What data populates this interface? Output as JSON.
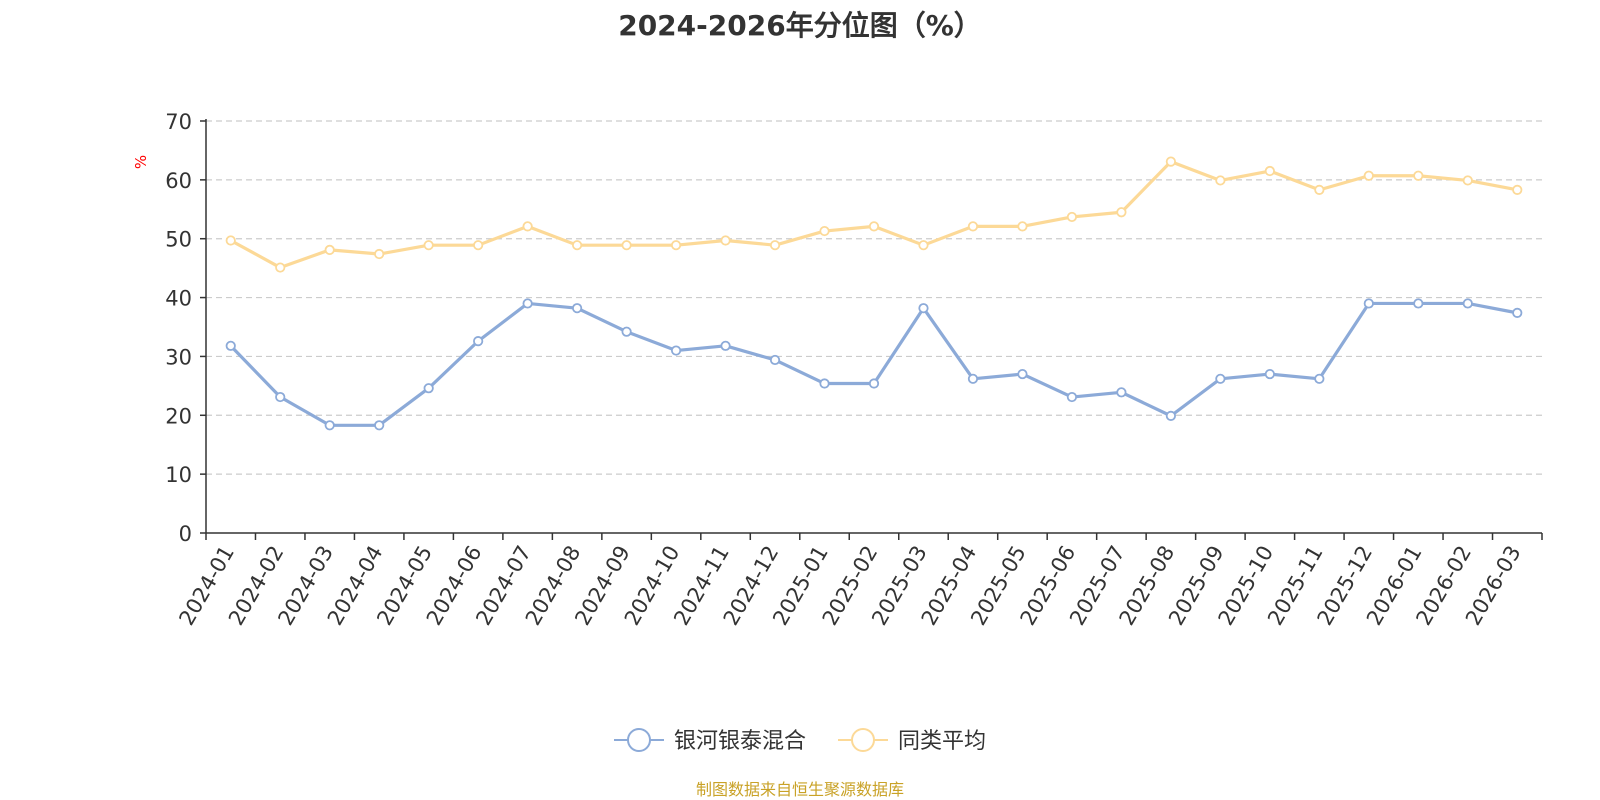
{
  "chart_data": {
    "type": "line",
    "title": "2024-2026年分位图（%）",
    "ylabel": "%",
    "xlabel": "",
    "ylim": [
      0,
      70
    ],
    "yticks": [
      0,
      10,
      20,
      30,
      40,
      50,
      60,
      70
    ],
    "grid": "horizontal-dashed",
    "legend_position": "bottom-center",
    "categories": [
      "2024-01",
      "2024-02",
      "2024-03",
      "2024-04",
      "2024-05",
      "2024-06",
      "2024-07",
      "2024-08",
      "2024-09",
      "2024-10",
      "2024-11",
      "2024-12",
      "2025-01",
      "2025-02",
      "2025-03",
      "2025-04",
      "2025-05",
      "2025-06",
      "2025-07",
      "2025-08",
      "2025-09",
      "2025-10",
      "2025-11",
      "2025-12",
      "2026-01",
      "2026-02",
      "2026-03"
    ],
    "series": [
      {
        "name": "银河银泰混合",
        "color": "#8caad8",
        "values": [
          31.8,
          23.1,
          18.3,
          18.3,
          24.6,
          32.6,
          39.0,
          38.2,
          34.2,
          31.0,
          31.8,
          29.4,
          25.4,
          25.4,
          38.2,
          26.2,
          27.0,
          23.1,
          23.9,
          19.9,
          26.2,
          27.0,
          26.2,
          39.0,
          39.0,
          39.0,
          37.4
        ]
      },
      {
        "name": "同类平均",
        "color": "#fcd997",
        "values": [
          49.7,
          45.1,
          48.1,
          47.4,
          48.9,
          48.9,
          52.1,
          48.9,
          48.9,
          48.9,
          49.7,
          48.9,
          51.3,
          52.1,
          48.9,
          52.1,
          52.1,
          53.7,
          54.5,
          63.1,
          59.9,
          61.5,
          58.3,
          60.7,
          60.7,
          59.9,
          58.3
        ]
      }
    ]
  },
  "footer": {
    "source_text": "制图数据来自恒生聚源数据库",
    "source_color": "#c9a227"
  },
  "colors": {
    "axis": "#333333",
    "grid": "#cccccc"
  }
}
